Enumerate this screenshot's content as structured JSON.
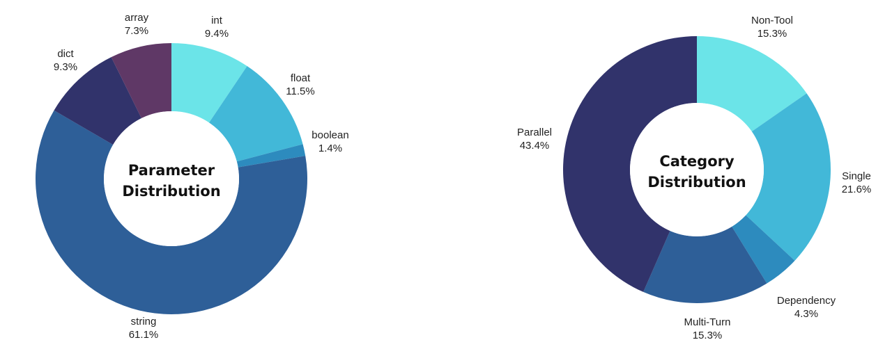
{
  "chart_data": [
    {
      "type": "pie",
      "style": "donut",
      "center_label": [
        "Parameter",
        "Distribution"
      ],
      "slices": [
        {
          "label": "int",
          "value": 9.4,
          "display": "9.4%",
          "color": "#6BE4E8"
        },
        {
          "label": "float",
          "value": 11.5,
          "display": "11.5%",
          "color": "#42B8D8"
        },
        {
          "label": "boolean",
          "value": 1.4,
          "display": "1.4%",
          "color": "#2D8BBE"
        },
        {
          "label": "string",
          "value": 61.1,
          "display": "61.1%",
          "color": "#2E5F98"
        },
        {
          "label": "dict",
          "value": 9.3,
          "display": "9.3%",
          "color": "#31336B"
        },
        {
          "label": "array",
          "value": 7.3,
          "display": "7.3%",
          "color": "#5F3866"
        }
      ]
    },
    {
      "type": "pie",
      "style": "donut",
      "center_label": [
        "Category",
        "Distribution"
      ],
      "slices": [
        {
          "label": "Non-Tool",
          "value": 15.3,
          "display": "15.3%",
          "color": "#6BE4E8"
        },
        {
          "label": "Single",
          "value": 21.6,
          "display": "21.6%",
          "color": "#42B8D8"
        },
        {
          "label": "Dependency",
          "value": 4.3,
          "display": "4.3%",
          "color": "#2D8BBE"
        },
        {
          "label": "Multi-Turn",
          "value": 15.3,
          "display": "15.3%",
          "color": "#2E5F98"
        },
        {
          "label": "Parallel",
          "value": 43.4,
          "display": "43.4%",
          "color": "#31336B"
        }
      ]
    }
  ]
}
